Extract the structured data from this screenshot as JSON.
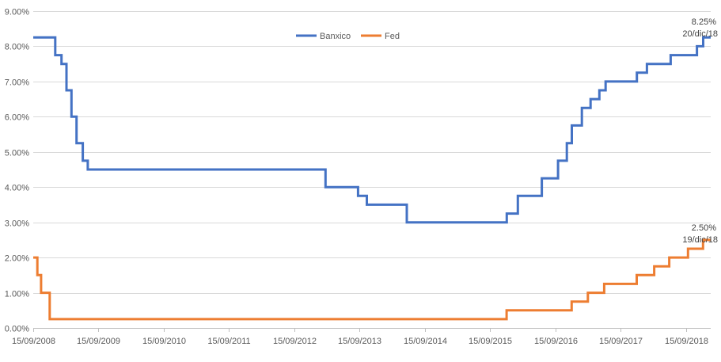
{
  "chart_data": {
    "type": "line",
    "step": true,
    "title": "",
    "xlabel": "",
    "ylabel": "",
    "x_range": [
      "2008-09-15",
      "2019-01-31"
    ],
    "ylim": [
      0,
      9
    ],
    "y_ticks": [
      0,
      1,
      2,
      3,
      4,
      5,
      6,
      7,
      8,
      9
    ],
    "y_tick_labels": [
      "0.00%",
      "1.00%",
      "2.00%",
      "3.00%",
      "4.00%",
      "5.00%",
      "6.00%",
      "7.00%",
      "8.00%",
      "9.00%"
    ],
    "x_ticks": [
      "2008-09-15",
      "2009-09-15",
      "2010-09-15",
      "2011-09-15",
      "2012-09-15",
      "2013-09-15",
      "2014-09-15",
      "2015-09-15",
      "2016-09-15",
      "2017-09-15",
      "2018-09-15"
    ],
    "x_tick_labels": [
      "15/09/2008",
      "15/09/2009",
      "15/09/2010",
      "15/09/2011",
      "15/09/2012",
      "15/09/2013",
      "15/09/2014",
      "15/09/2015",
      "15/09/2016",
      "15/09/2017",
      "15/09/2018"
    ],
    "grid": "horizontal",
    "legend_position": "top-center",
    "series": [
      {
        "name": "Banxico",
        "color": "#4472C4",
        "points": [
          [
            "2008-09-15",
            8.25
          ],
          [
            "2009-01-16",
            7.75
          ],
          [
            "2009-02-20",
            7.5
          ],
          [
            "2009-03-20",
            6.75
          ],
          [
            "2009-04-17",
            6.0
          ],
          [
            "2009-05-15",
            5.25
          ],
          [
            "2009-06-19",
            4.75
          ],
          [
            "2009-07-17",
            4.5
          ],
          [
            "2013-03-08",
            4.0
          ],
          [
            "2013-09-06",
            3.75
          ],
          [
            "2013-10-25",
            3.5
          ],
          [
            "2014-06-06",
            3.0
          ],
          [
            "2015-12-17",
            3.25
          ],
          [
            "2016-02-17",
            3.75
          ],
          [
            "2016-06-30",
            4.25
          ],
          [
            "2016-09-29",
            4.75
          ],
          [
            "2016-11-17",
            5.25
          ],
          [
            "2016-12-15",
            5.75
          ],
          [
            "2017-02-09",
            6.25
          ],
          [
            "2017-03-30",
            6.5
          ],
          [
            "2017-05-18",
            6.75
          ],
          [
            "2017-06-22",
            7.0
          ],
          [
            "2017-12-14",
            7.25
          ],
          [
            "2018-02-08",
            7.5
          ],
          [
            "2018-06-21",
            7.75
          ],
          [
            "2018-11-15",
            8.0
          ],
          [
            "2018-12-20",
            8.25
          ],
          [
            "2019-01-31",
            8.25
          ]
        ],
        "annotation": {
          "value": "8.25%",
          "date": "20/dic/18"
        }
      },
      {
        "name": "Fed",
        "color": "#ED7D31",
        "points": [
          [
            "2008-09-15",
            2.0
          ],
          [
            "2008-10-08",
            1.5
          ],
          [
            "2008-10-29",
            1.0
          ],
          [
            "2008-12-16",
            0.25
          ],
          [
            "2015-12-16",
            0.5
          ],
          [
            "2016-12-14",
            0.75
          ],
          [
            "2017-03-15",
            1.0
          ],
          [
            "2017-06-14",
            1.25
          ],
          [
            "2017-12-13",
            1.5
          ],
          [
            "2018-03-21",
            1.75
          ],
          [
            "2018-06-13",
            2.0
          ],
          [
            "2018-09-26",
            2.25
          ],
          [
            "2018-12-19",
            2.5
          ],
          [
            "2019-01-31",
            2.5
          ]
        ],
        "annotation": {
          "value": "2.50%",
          "date": "19/dic/18"
        }
      }
    ]
  }
}
